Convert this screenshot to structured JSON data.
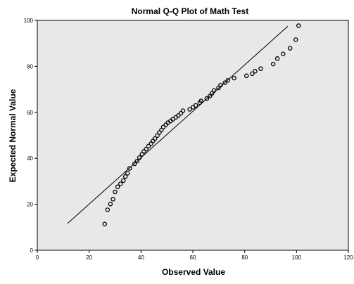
{
  "chart_data": {
    "type": "scatter",
    "title": "Normal Q-Q Plot of Math Test",
    "xlabel": "Observed Value",
    "ylabel": "Expected Normal Value",
    "xlim": [
      0,
      120
    ],
    "ylim": [
      0,
      100
    ],
    "xticks": [
      "0",
      "20",
      "40",
      "60",
      "80",
      "100",
      "120"
    ],
    "yticks": [
      "0",
      "20",
      "40",
      "60",
      "80",
      "100"
    ],
    "reference_line": {
      "x": [
        11.7,
        96.7
      ],
      "y": [
        11.7,
        97.5
      ]
    },
    "marker": "hollow-circle",
    "plot_background": "#e8e8e8",
    "grid": false,
    "points": [
      {
        "x": 26.0,
        "y": 11.4
      },
      {
        "x": 27.1,
        "y": 17.6
      },
      {
        "x": 28.2,
        "y": 20.1
      },
      {
        "x": 29.2,
        "y": 22.2
      },
      {
        "x": 30.0,
        "y": 25.4
      },
      {
        "x": 31.0,
        "y": 27.6
      },
      {
        "x": 32.1,
        "y": 28.9
      },
      {
        "x": 33.2,
        "y": 30.3
      },
      {
        "x": 34.0,
        "y": 32.1
      },
      {
        "x": 34.8,
        "y": 33.5
      },
      {
        "x": 35.6,
        "y": 35.6
      },
      {
        "x": 37.5,
        "y": 37.6
      },
      {
        "x": 38.5,
        "y": 38.8
      },
      {
        "x": 39.4,
        "y": 40.3
      },
      {
        "x": 40.4,
        "y": 41.8
      },
      {
        "x": 41.1,
        "y": 43.0
      },
      {
        "x": 42.0,
        "y": 44.0
      },
      {
        "x": 42.9,
        "y": 45.3
      },
      {
        "x": 43.9,
        "y": 46.4
      },
      {
        "x": 44.6,
        "y": 47.5
      },
      {
        "x": 45.4,
        "y": 48.6
      },
      {
        "x": 46.3,
        "y": 49.9
      },
      {
        "x": 47.1,
        "y": 51.2
      },
      {
        "x": 47.9,
        "y": 52.3
      },
      {
        "x": 48.6,
        "y": 53.6
      },
      {
        "x": 49.6,
        "y": 54.6
      },
      {
        "x": 50.4,
        "y": 55.5
      },
      {
        "x": 51.4,
        "y": 56.2
      },
      {
        "x": 52.3,
        "y": 57.0
      },
      {
        "x": 53.4,
        "y": 57.8
      },
      {
        "x": 54.4,
        "y": 58.6
      },
      {
        "x": 55.4,
        "y": 59.6
      },
      {
        "x": 56.2,
        "y": 60.7
      },
      {
        "x": 58.8,
        "y": 61.3
      },
      {
        "x": 60.1,
        "y": 62.2
      },
      {
        "x": 61.1,
        "y": 63.0
      },
      {
        "x": 62.7,
        "y": 64.2
      },
      {
        "x": 63.2,
        "y": 65.0
      },
      {
        "x": 65.4,
        "y": 66.0
      },
      {
        "x": 66.6,
        "y": 67.1
      },
      {
        "x": 67.4,
        "y": 68.3
      },
      {
        "x": 68.2,
        "y": 69.5
      },
      {
        "x": 69.9,
        "y": 70.6
      },
      {
        "x": 70.7,
        "y": 71.8
      },
      {
        "x": 72.4,
        "y": 72.9
      },
      {
        "x": 73.5,
        "y": 73.9
      },
      {
        "x": 75.9,
        "y": 74.9
      },
      {
        "x": 80.7,
        "y": 75.9
      },
      {
        "x": 82.9,
        "y": 76.8
      },
      {
        "x": 84.0,
        "y": 77.9
      },
      {
        "x": 86.2,
        "y": 79.0
      },
      {
        "x": 91.0,
        "y": 81.0
      },
      {
        "x": 92.6,
        "y": 83.4
      },
      {
        "x": 94.8,
        "y": 85.4
      },
      {
        "x": 97.5,
        "y": 87.9
      },
      {
        "x": 99.7,
        "y": 91.6
      },
      {
        "x": 100.8,
        "y": 97.7
      }
    ]
  }
}
